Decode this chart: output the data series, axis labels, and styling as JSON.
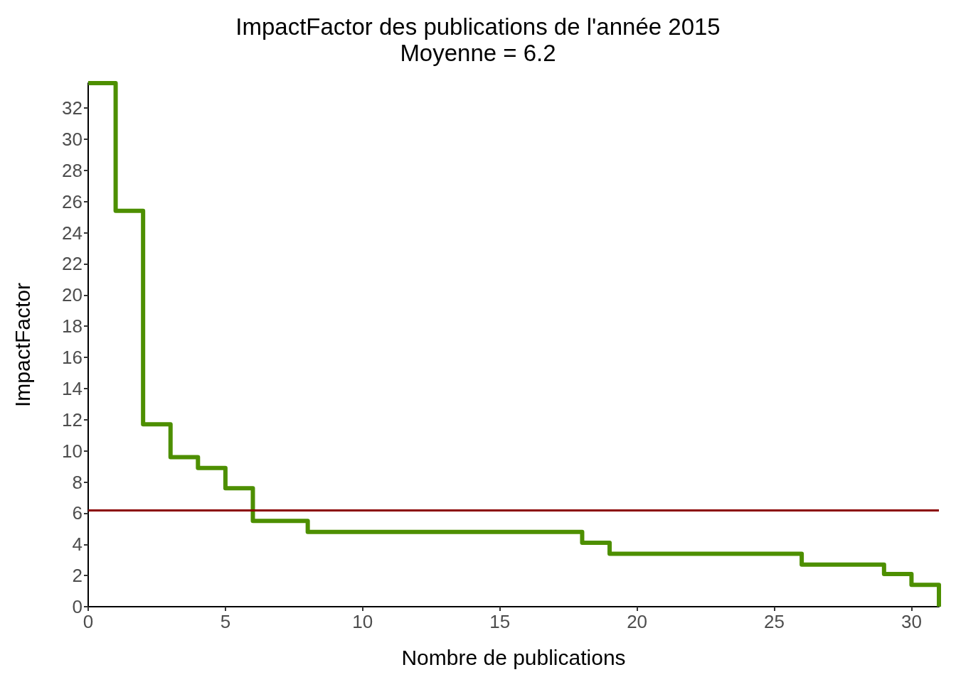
{
  "chart_data": {
    "type": "step",
    "title": "ImpactFactor des publications de l'année 2015",
    "subtitle": "Moyenne = 6.2",
    "xlabel": "Nombre de publications",
    "ylabel": "ImpactFactor",
    "x": [
      0,
      1,
      2,
      3,
      4,
      5,
      6,
      7,
      8,
      9,
      10,
      11,
      12,
      13,
      14,
      15,
      16,
      17,
      18,
      19,
      20,
      21,
      22,
      23,
      24,
      25,
      26,
      27,
      28,
      29,
      30,
      31
    ],
    "series": [
      {
        "color": "#4d8f00",
        "values": [
          33.6,
          25.4,
          11.7,
          9.6,
          8.9,
          7.6,
          5.5,
          5.5,
          4.8,
          4.8,
          4.8,
          4.8,
          4.8,
          4.8,
          4.8,
          4.8,
          4.8,
          4.8,
          4.1,
          3.4,
          3.4,
          3.4,
          3.4,
          3.4,
          3.4,
          3.4,
          2.7,
          2.7,
          2.7,
          2.1,
          1.4,
          0
        ]
      }
    ],
    "xlim": [
      0,
      31
    ],
    "xticks": [
      0,
      5,
      10,
      15,
      20,
      25,
      30
    ],
    "ylim": [
      0,
      33.6
    ],
    "yticks": [
      0,
      2,
      4,
      6,
      8,
      10,
      12,
      14,
      16,
      18,
      20,
      22,
      24,
      26,
      28,
      30,
      32
    ],
    "ref_lines": [
      {
        "axis": "y",
        "value": 6.2,
        "label": null,
        "color": "#8b0000"
      }
    ],
    "grid": false,
    "marker": "none",
    "line_style": "solid"
  }
}
